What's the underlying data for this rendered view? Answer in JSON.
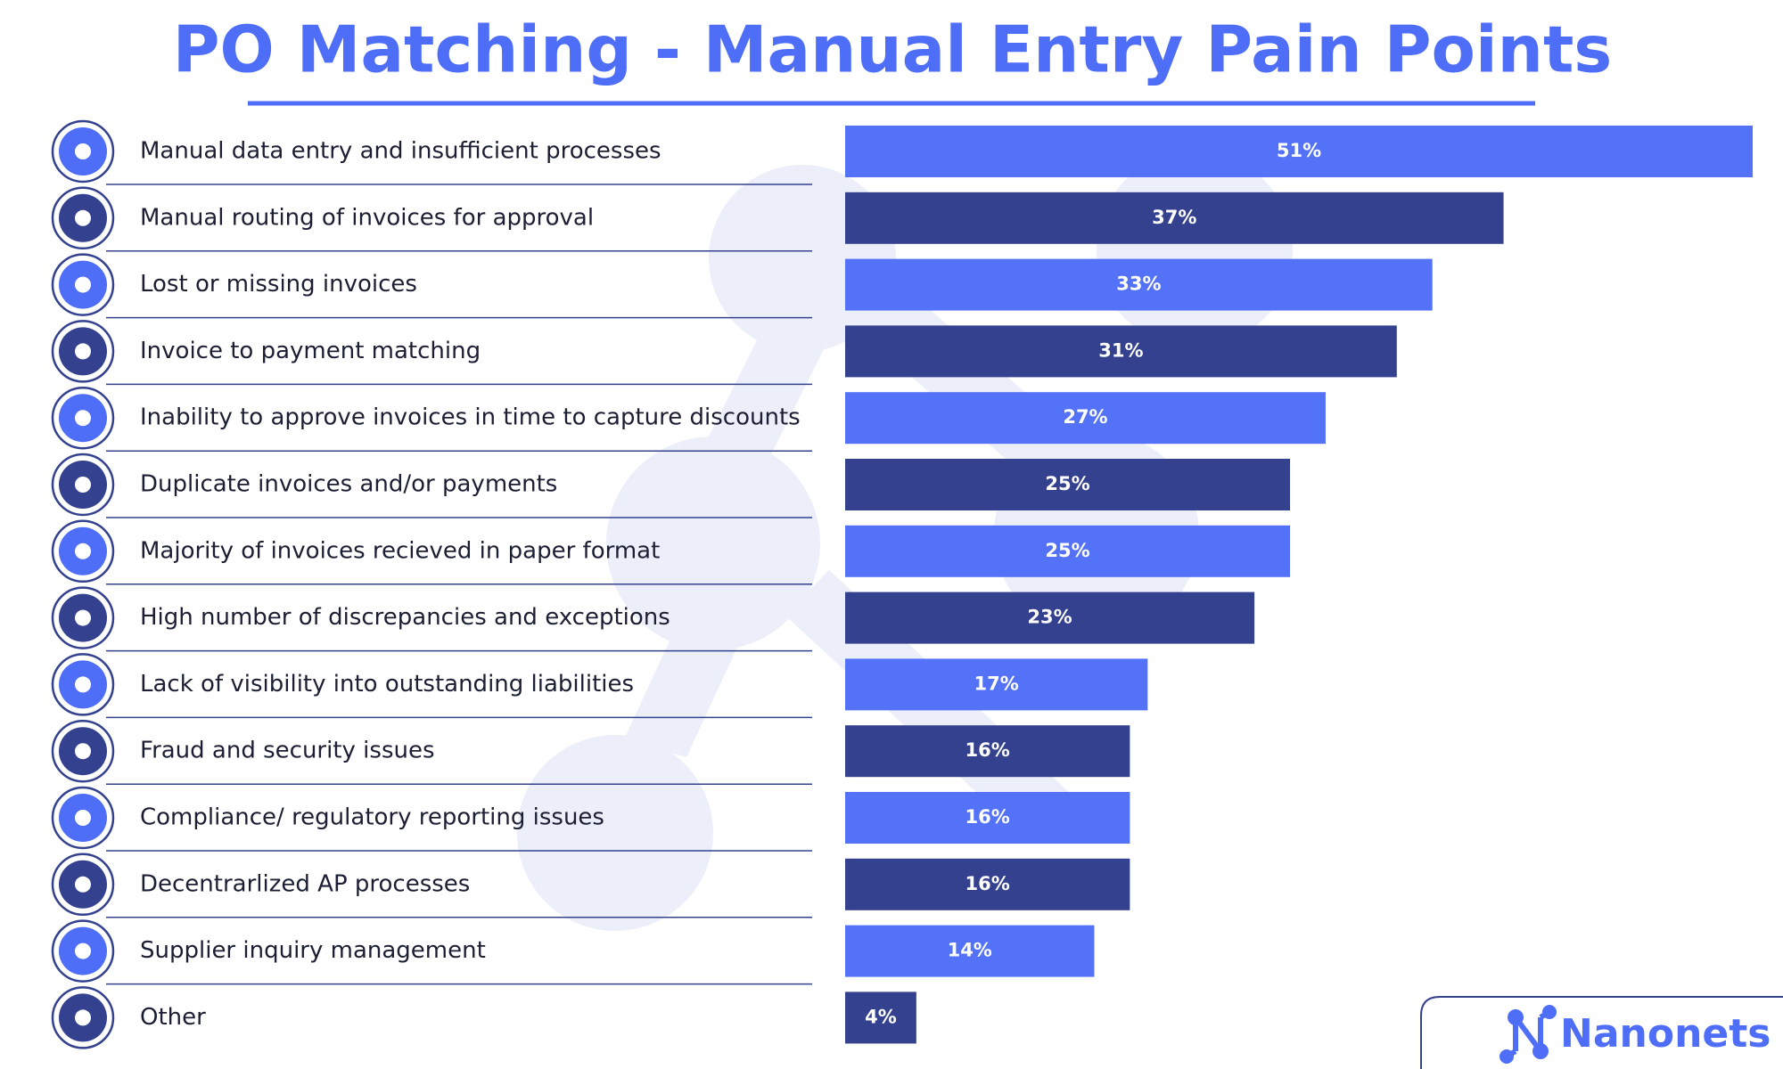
{
  "chart_data": {
    "type": "bar",
    "orientation": "horizontal",
    "title": "PO Matching - Manual Entry Pain Points",
    "categories": [
      "Manual data entry and insufficient processes",
      "Manual routing of invoices for approval",
      "Lost or missing invoices",
      "Invoice to payment matching",
      "Inability to approve invoices in time to capture discounts",
      "Duplicate invoices and/or payments",
      "Majority of invoices recieved in paper format",
      "High number of discrepancies and exceptions",
      "Lack of visibility into outstanding liabilities",
      "Fraud and security issues",
      "Compliance/ regulatory reporting issues",
      "Decentrarlized AP processes",
      "Supplier inquiry management",
      "Other"
    ],
    "values": [
      51,
      37,
      33,
      31,
      27,
      25,
      25,
      23,
      17,
      16,
      16,
      16,
      14,
      4
    ],
    "value_labels": [
      "51%",
      "37%",
      "33%",
      "31%",
      "27%",
      "25%",
      "25%",
      "23%",
      "17%",
      "16%",
      "16%",
      "16%",
      "14%",
      "4%"
    ],
    "colors": [
      "#5472f7",
      "#34418f",
      "#5472f7",
      "#34418f",
      "#5472f7",
      "#34418f",
      "#5472f7",
      "#34418f",
      "#5472f7",
      "#34418f",
      "#5472f7",
      "#34418f",
      "#5472f7",
      "#34418f"
    ],
    "brand": "Nanonets"
  }
}
